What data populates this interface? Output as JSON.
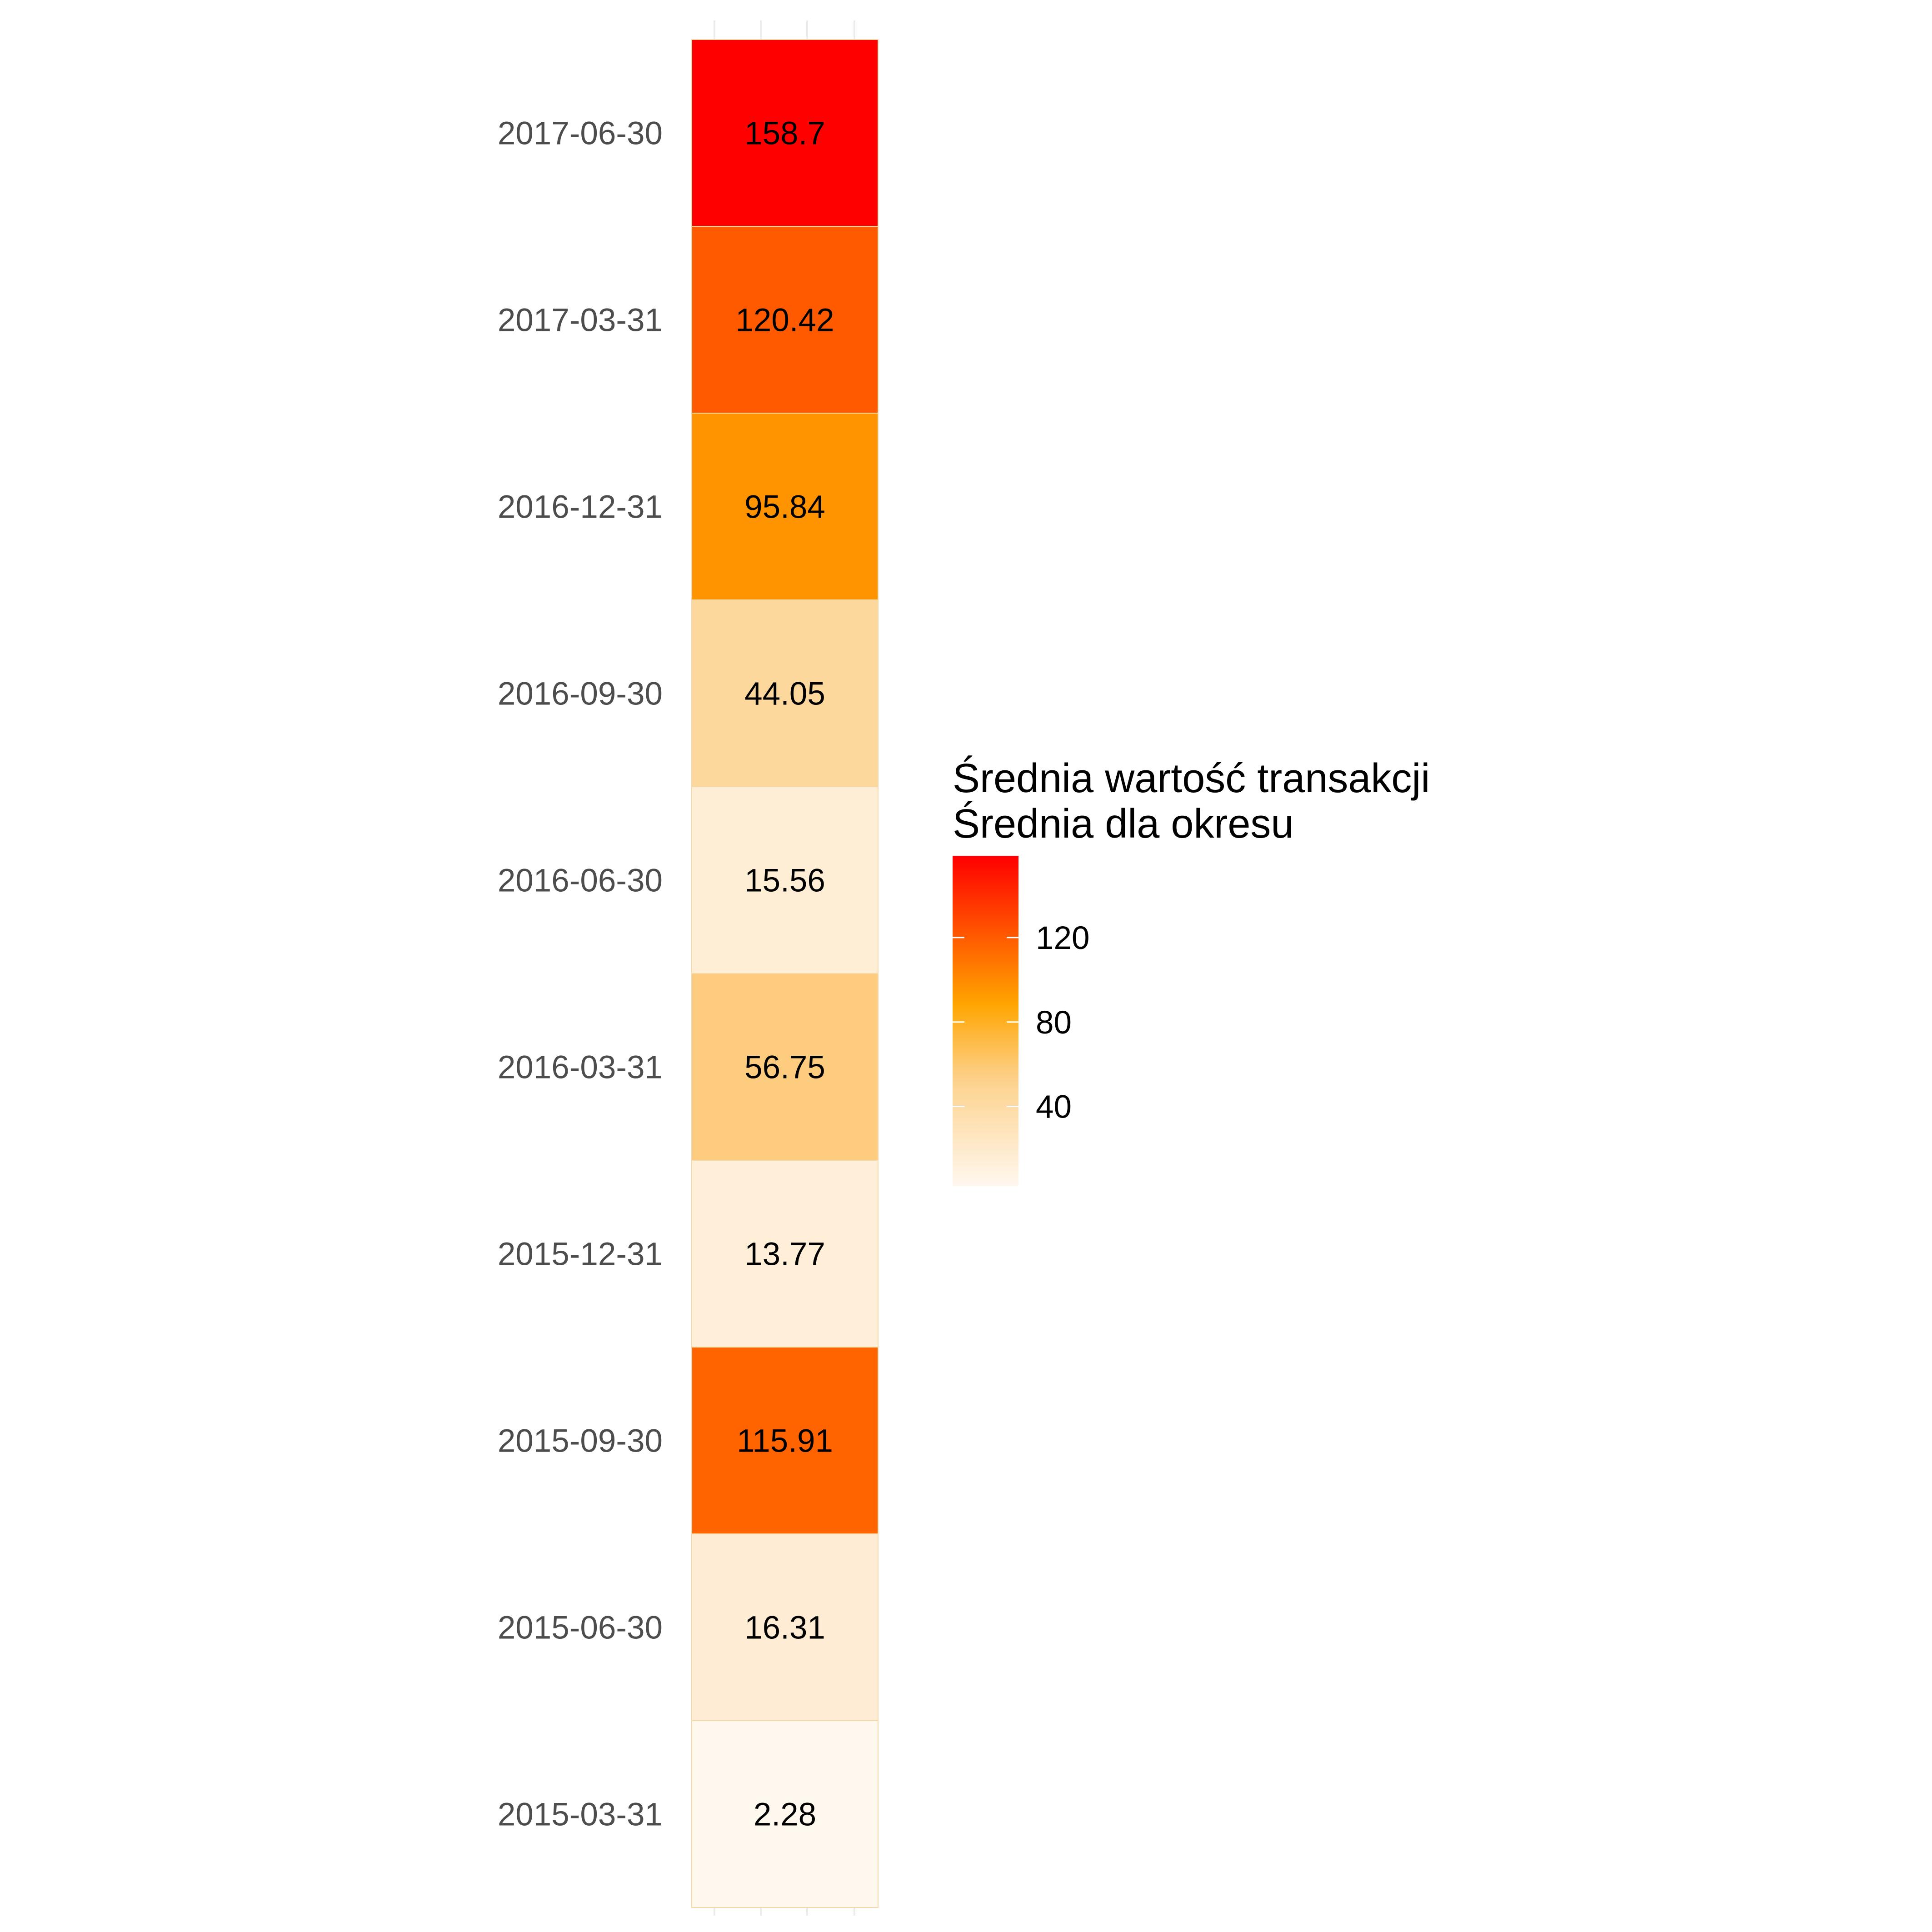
{
  "chart_data": {
    "type": "heatmap",
    "title": "",
    "xlabel": "",
    "ylabel": "",
    "categories": [
      "2017-06-30",
      "2017-03-31",
      "2016-12-31",
      "2016-09-30",
      "2016-06-30",
      "2016-03-31",
      "2015-12-31",
      "2015-09-30",
      "2015-06-30",
      "2015-03-31"
    ],
    "values": [
      158.7,
      120.42,
      95.84,
      44.05,
      15.56,
      56.75,
      13.77,
      115.91,
      16.31,
      2.28
    ],
    "value_labels": [
      "158.7",
      "120.42",
      "95.84",
      "44.05",
      "15.56",
      "56.75",
      "13.77",
      "115.91",
      "16.31",
      "2.28"
    ],
    "legend": {
      "title_lines": [
        "Średnia wartość transakcji",
        "Średnia dla okresu"
      ],
      "ticks": [
        120,
        80,
        40
      ],
      "tick_labels": [
        "120",
        "80",
        "40"
      ],
      "range": [
        2.28,
        158.7
      ],
      "placement": "right"
    },
    "colors": {
      "low": "#fff8ef",
      "mid_light": "#fdd08a",
      "mid": "#ffa500",
      "high": "#ff0000",
      "cell_border": "#f5d9a8",
      "grid": "#ebebeb"
    },
    "grid": true
  }
}
